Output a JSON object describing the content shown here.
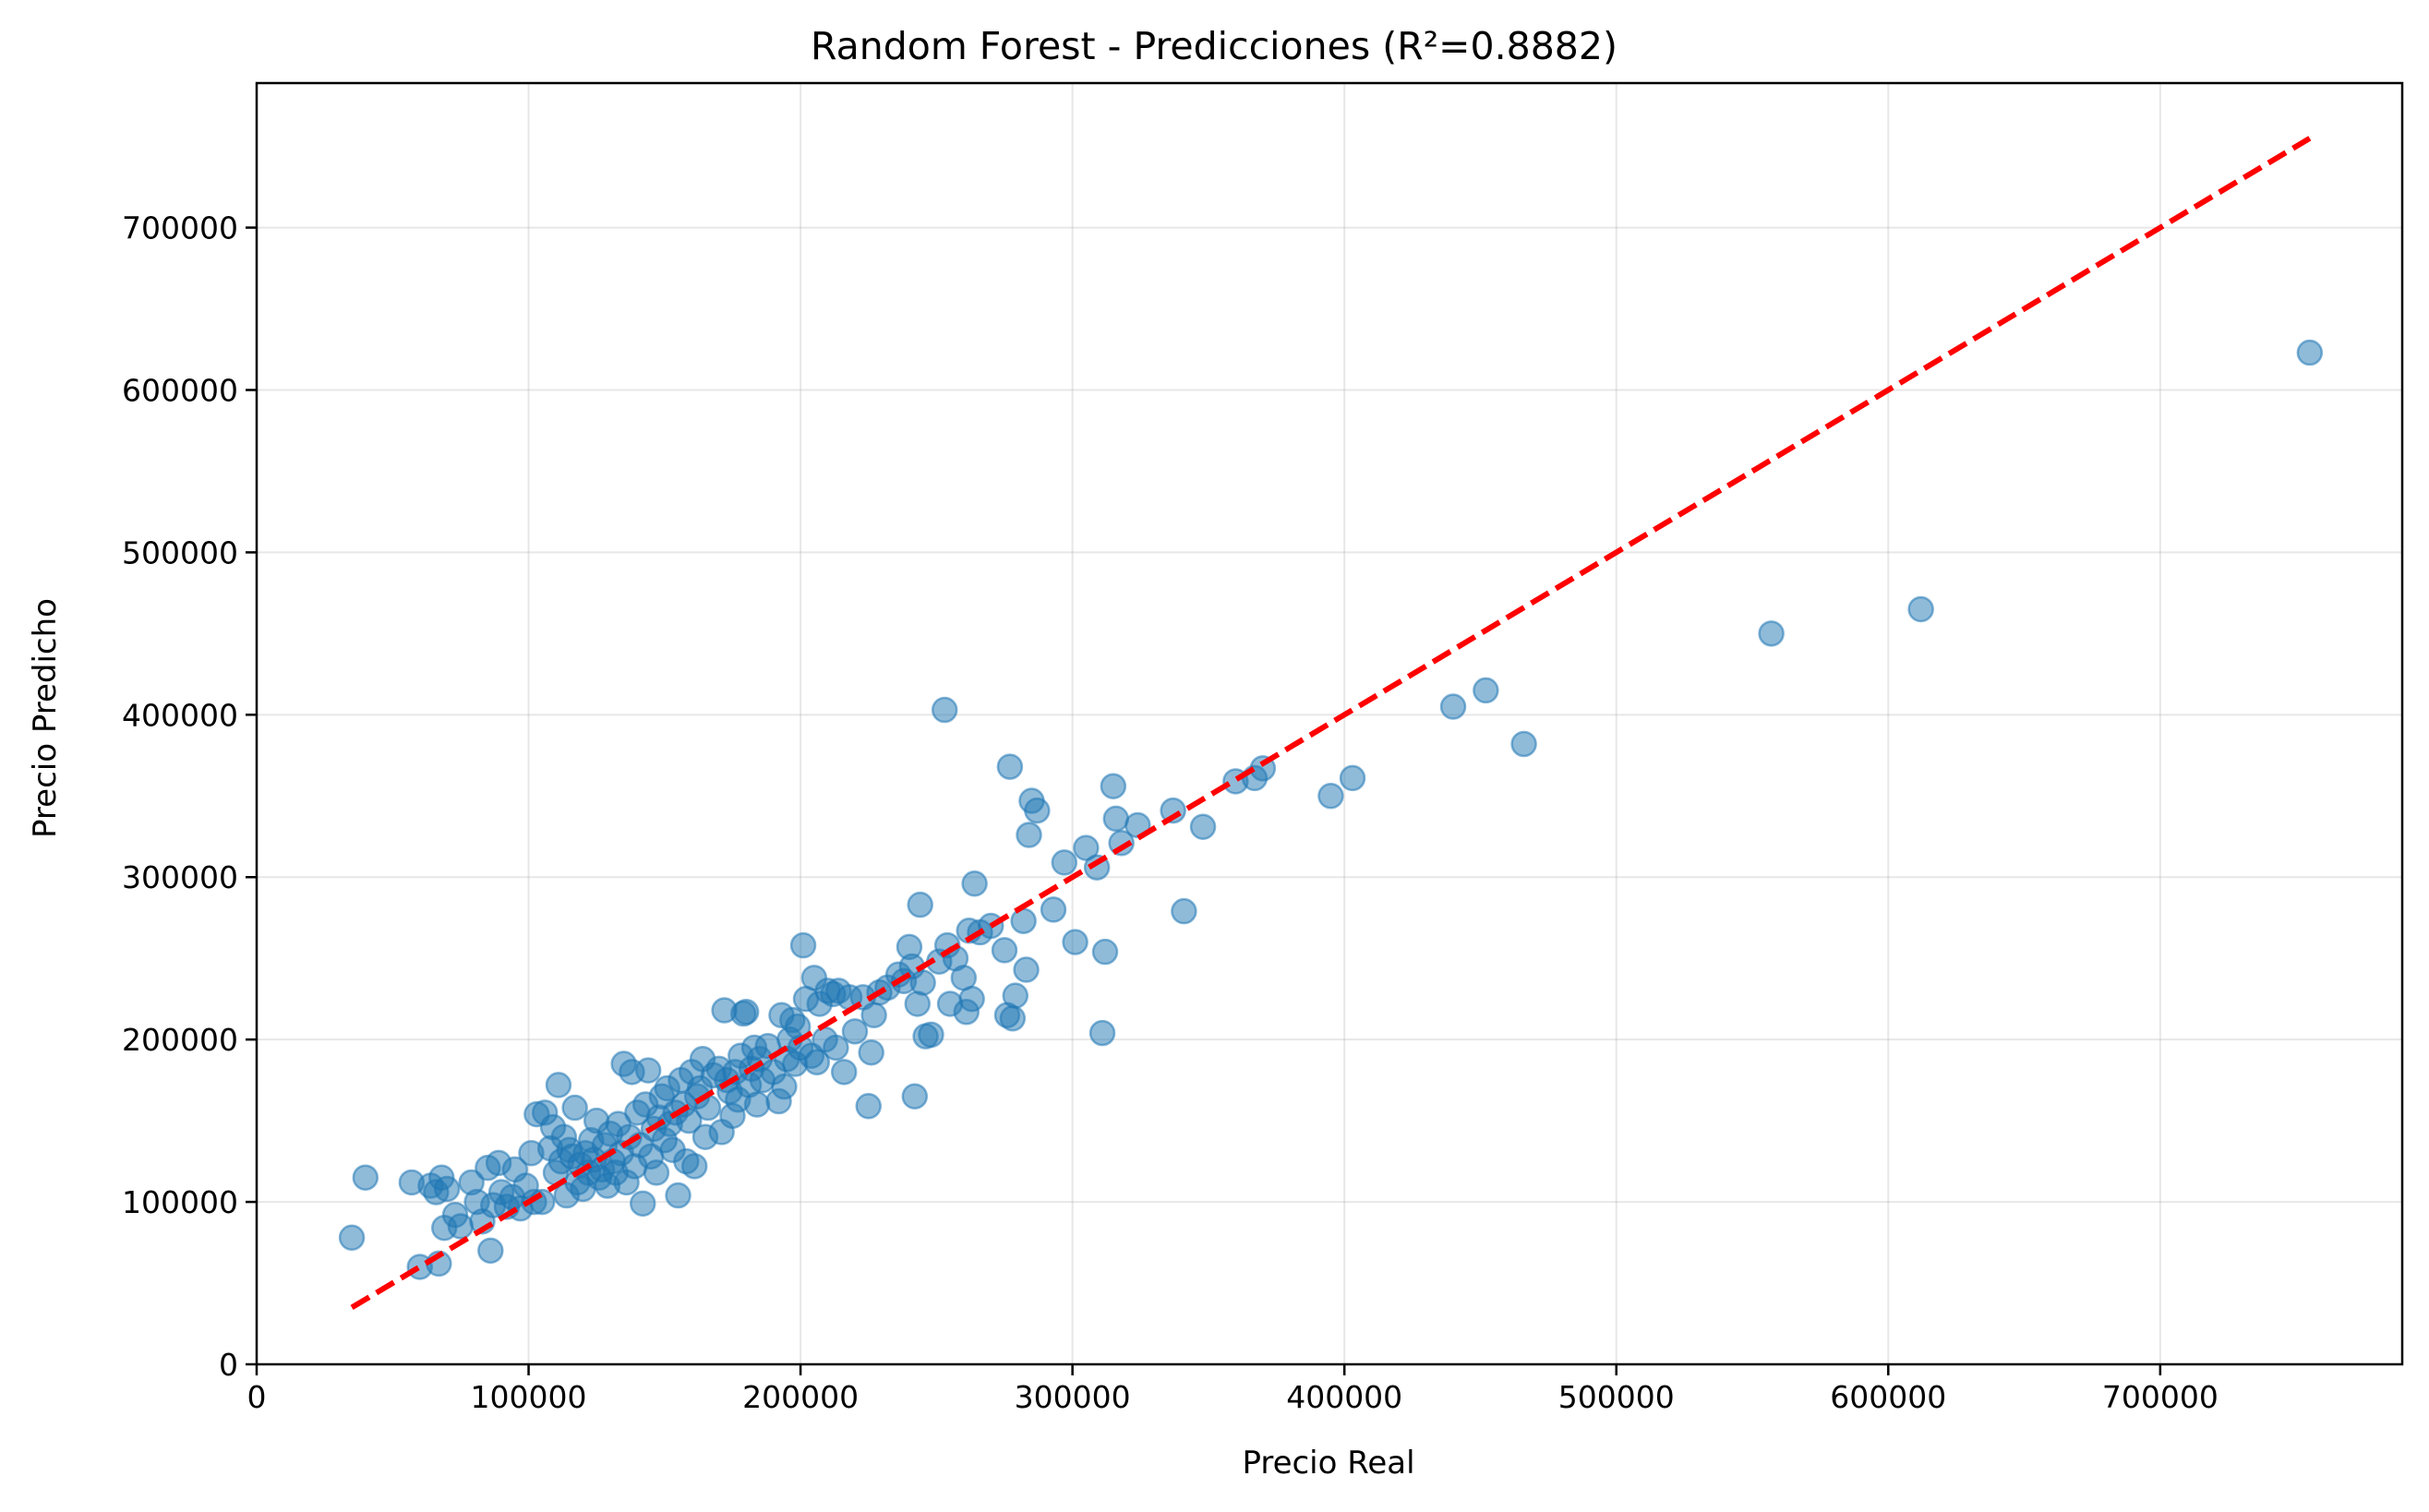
{
  "chart_data": {
    "type": "scatter",
    "title": "Random Forest - Predicciones (R²=0.8882)",
    "xlabel": "Precio Real",
    "ylabel": "Precio Predicho",
    "xlim": [
      0,
      789000
    ],
    "ylim": [
      0,
      789000
    ],
    "xticks": [
      0,
      100000,
      200000,
      300000,
      400000,
      500000,
      600000,
      700000
    ],
    "yticks": [
      0,
      100000,
      200000,
      300000,
      400000,
      500000,
      600000,
      700000
    ],
    "grid": true,
    "colors": {
      "points": "#1f77b4",
      "reference_line": "#ff0000"
    },
    "reference_line": {
      "style": "dashed",
      "from": [
        35000,
        35000
      ],
      "to": [
        755000,
        755000
      ]
    },
    "points": [
      [
        35000,
        78000
      ],
      [
        40000,
        115000
      ],
      [
        57000,
        112000
      ],
      [
        60000,
        60000
      ],
      [
        64000,
        110000
      ],
      [
        67000,
        62000
      ],
      [
        66000,
        106000
      ],
      [
        68000,
        115000
      ],
      [
        69000,
        84000
      ],
      [
        70000,
        108000
      ],
      [
        73000,
        92000
      ],
      [
        75000,
        85000
      ],
      [
        79000,
        112000
      ],
      [
        81000,
        100000
      ],
      [
        83000,
        88000
      ],
      [
        85000,
        121000
      ],
      [
        86000,
        70000
      ],
      [
        87000,
        98000
      ],
      [
        89000,
        124000
      ],
      [
        90000,
        106000
      ],
      [
        92000,
        97000
      ],
      [
        94000,
        103000
      ],
      [
        95000,
        120000
      ],
      [
        97000,
        96000
      ],
      [
        99000,
        110000
      ],
      [
        101000,
        130000
      ],
      [
        102000,
        100000
      ],
      [
        103000,
        154000
      ],
      [
        105000,
        100000
      ],
      [
        106000,
        155000
      ],
      [
        108000,
        133000
      ],
      [
        109000,
        146000
      ],
      [
        110000,
        118000
      ],
      [
        111000,
        172000
      ],
      [
        112000,
        125000
      ],
      [
        113000,
        140000
      ],
      [
        114000,
        104000
      ],
      [
        115000,
        132000
      ],
      [
        116000,
        128000
      ],
      [
        117000,
        158000
      ],
      [
        118000,
        112000
      ],
      [
        119000,
        123000
      ],
      [
        120000,
        108000
      ],
      [
        121000,
        130000
      ],
      [
        122000,
        118000
      ],
      [
        123000,
        138000
      ],
      [
        124000,
        126000
      ],
      [
        125000,
        150000
      ],
      [
        126000,
        115000
      ],
      [
        127000,
        120000
      ],
      [
        128000,
        135000
      ],
      [
        129000,
        110000
      ],
      [
        130000,
        142000
      ],
      [
        131000,
        125000
      ],
      [
        132000,
        118000
      ],
      [
        133000,
        148000
      ],
      [
        134000,
        130000
      ],
      [
        135000,
        185000
      ],
      [
        136000,
        112000
      ],
      [
        137000,
        140000
      ],
      [
        138000,
        180000
      ],
      [
        139000,
        122000
      ],
      [
        140000,
        155000
      ],
      [
        141000,
        135000
      ],
      [
        142000,
        99000
      ],
      [
        143000,
        160000
      ],
      [
        144000,
        181000
      ],
      [
        145000,
        128000
      ],
      [
        146000,
        145000
      ],
      [
        147000,
        118000
      ],
      [
        148000,
        152000
      ],
      [
        149000,
        165000
      ],
      [
        150000,
        138000
      ],
      [
        151000,
        170000
      ],
      [
        152000,
        148000
      ],
      [
        153000,
        132000
      ],
      [
        154000,
        155000
      ],
      [
        155000,
        104000
      ],
      [
        156000,
        175000
      ],
      [
        157000,
        160000
      ],
      [
        158000,
        125000
      ],
      [
        159000,
        150000
      ],
      [
        160000,
        180000
      ],
      [
        161000,
        122000
      ],
      [
        162000,
        165000
      ],
      [
        163000,
        170000
      ],
      [
        164000,
        188000
      ],
      [
        165000,
        140000
      ],
      [
        166000,
        158000
      ],
      [
        168000,
        178000
      ],
      [
        170000,
        182000
      ],
      [
        171000,
        143000
      ],
      [
        172000,
        218000
      ],
      [
        173000,
        175000
      ],
      [
        174000,
        168000
      ],
      [
        175000,
        153000
      ],
      [
        176000,
        180000
      ],
      [
        177000,
        163000
      ],
      [
        178000,
        190000
      ],
      [
        179000,
        216000
      ],
      [
        180000,
        217000
      ],
      [
        181000,
        172000
      ],
      [
        182000,
        182000
      ],
      [
        183000,
        195000
      ],
      [
        184000,
        160000
      ],
      [
        185000,
        188000
      ],
      [
        186000,
        175000
      ],
      [
        188000,
        196000
      ],
      [
        190000,
        180000
      ],
      [
        192000,
        162000
      ],
      [
        193000,
        215000
      ],
      [
        194000,
        171000
      ],
      [
        195000,
        188000
      ],
      [
        196000,
        200000
      ],
      [
        197000,
        212000
      ],
      [
        198000,
        185000
      ],
      [
        199000,
        208000
      ],
      [
        200000,
        195000
      ],
      [
        201000,
        258000
      ],
      [
        202000,
        225000
      ],
      [
        204000,
        190000
      ],
      [
        205000,
        238000
      ],
      [
        206000,
        186000
      ],
      [
        207000,
        222000
      ],
      [
        209000,
        200000
      ],
      [
        210000,
        230000
      ],
      [
        212000,
        228000
      ],
      [
        213000,
        195000
      ],
      [
        214000,
        230000
      ],
      [
        216000,
        180000
      ],
      [
        218000,
        226000
      ],
      [
        220000,
        205000
      ],
      [
        223000,
        226000
      ],
      [
        225000,
        159000
      ],
      [
        226000,
        192000
      ],
      [
        227000,
        215000
      ],
      [
        229000,
        229000
      ],
      [
        232000,
        232000
      ],
      [
        236000,
        240000
      ],
      [
        238000,
        236000
      ],
      [
        240000,
        257000
      ],
      [
        241000,
        245000
      ],
      [
        242000,
        165000
      ],
      [
        243000,
        222000
      ],
      [
        244000,
        283000
      ],
      [
        245000,
        235000
      ],
      [
        246000,
        202000
      ],
      [
        248000,
        203000
      ],
      [
        251000,
        248000
      ],
      [
        253000,
        403000
      ],
      [
        254000,
        258000
      ],
      [
        255000,
        222000
      ],
      [
        257000,
        250000
      ],
      [
        260000,
        238000
      ],
      [
        261000,
        217000
      ],
      [
        262000,
        267000
      ],
      [
        263000,
        225000
      ],
      [
        264000,
        296000
      ],
      [
        266000,
        266000
      ],
      [
        270000,
        270000
      ],
      [
        275000,
        255000
      ],
      [
        276000,
        215000
      ],
      [
        277000,
        368000
      ],
      [
        278000,
        213000
      ],
      [
        279000,
        227000
      ],
      [
        282000,
        273000
      ],
      [
        283000,
        243000
      ],
      [
        284000,
        326000
      ],
      [
        285000,
        347000
      ],
      [
        287000,
        341000
      ],
      [
        293000,
        280000
      ],
      [
        297000,
        309000
      ],
      [
        301000,
        260000
      ],
      [
        305000,
        318000
      ],
      [
        309000,
        306000
      ],
      [
        311000,
        204000
      ],
      [
        312000,
        254000
      ],
      [
        315000,
        356000
      ],
      [
        316000,
        336000
      ],
      [
        318000,
        321000
      ],
      [
        324000,
        332000
      ],
      [
        337000,
        341000
      ],
      [
        341000,
        279000
      ],
      [
        348000,
        331000
      ],
      [
        360000,
        359000
      ],
      [
        367000,
        361000
      ],
      [
        370000,
        367000
      ],
      [
        395000,
        350000
      ],
      [
        403000,
        361000
      ],
      [
        440000,
        405000
      ],
      [
        452000,
        415000
      ],
      [
        466000,
        382000
      ],
      [
        557000,
        450000
      ],
      [
        612000,
        465000
      ],
      [
        755000,
        623000
      ]
    ]
  }
}
